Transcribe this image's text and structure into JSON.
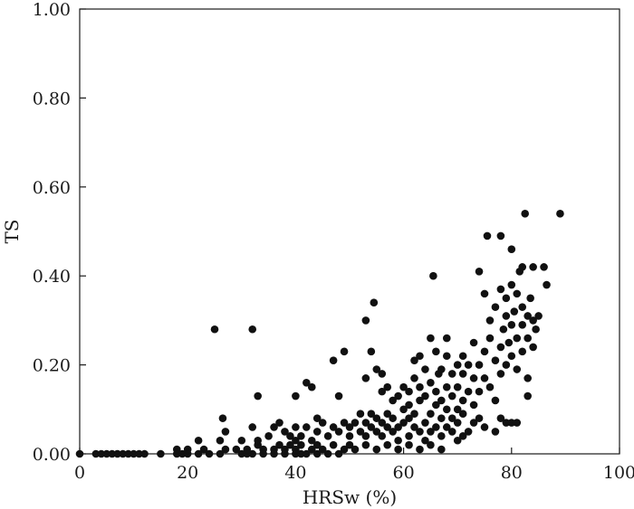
{
  "chart_data": {
    "type": "scatter",
    "xlabel": "HRSw (%)",
    "ylabel": "TS",
    "xlim": [
      0,
      100
    ],
    "ylim": [
      0,
      1.0
    ],
    "x_ticks": [
      0,
      20,
      40,
      60,
      80,
      100
    ],
    "y_ticks": [
      0.0,
      0.2,
      0.4,
      0.6,
      0.8,
      1.0
    ],
    "x_tick_labels": [
      "0",
      "20",
      "40",
      "60",
      "80",
      "100"
    ],
    "y_tick_labels": [
      "0.00",
      "0.20",
      "0.40",
      "0.60",
      "0.80",
      "1.00"
    ],
    "grid": false,
    "legend": "none",
    "marker_color": "#111111",
    "points": [
      [
        0,
        0
      ],
      [
        3,
        0
      ],
      [
        4,
        0
      ],
      [
        5,
        0
      ],
      [
        6,
        0
      ],
      [
        7,
        0
      ],
      [
        8,
        0
      ],
      [
        9,
        0
      ],
      [
        10,
        0
      ],
      [
        11,
        0
      ],
      [
        12,
        0
      ],
      [
        15,
        0
      ],
      [
        18,
        0
      ],
      [
        19,
        0
      ],
      [
        20,
        0
      ],
      [
        22,
        0
      ],
      [
        24,
        0
      ],
      [
        26,
        0
      ],
      [
        30,
        0
      ],
      [
        31,
        0
      ],
      [
        32,
        0
      ],
      [
        34,
        0
      ],
      [
        36,
        0
      ],
      [
        38,
        0
      ],
      [
        40,
        0
      ],
      [
        41,
        0
      ],
      [
        42,
        0
      ],
      [
        44,
        0
      ],
      [
        46,
        0
      ],
      [
        48,
        0
      ],
      [
        18,
        0.01
      ],
      [
        20,
        0.01
      ],
      [
        23,
        0.01
      ],
      [
        27,
        0.01
      ],
      [
        29,
        0.01
      ],
      [
        31,
        0.01
      ],
      [
        33,
        0.02
      ],
      [
        34,
        0.01
      ],
      [
        36,
        0.01
      ],
      [
        37,
        0.02
      ],
      [
        38,
        0.01
      ],
      [
        39,
        0.02
      ],
      [
        40,
        0.01
      ],
      [
        41,
        0.02
      ],
      [
        43,
        0.01
      ],
      [
        44,
        0.02
      ],
      [
        45,
        0.01
      ],
      [
        47,
        0.02
      ],
      [
        49,
        0.01
      ],
      [
        50,
        0.02
      ],
      [
        51,
        0.01
      ],
      [
        53,
        0.02
      ],
      [
        55,
        0.01
      ],
      [
        57,
        0.02
      ],
      [
        59,
        0.01
      ],
      [
        61,
        0.02
      ],
      [
        63,
        0.01
      ],
      [
        65,
        0.02
      ],
      [
        67,
        0.01
      ],
      [
        22,
        0.03
      ],
      [
        26,
        0.03
      ],
      [
        27,
        0.05
      ],
      [
        26.5,
        0.08
      ],
      [
        30,
        0.03
      ],
      [
        32,
        0.06
      ],
      [
        33,
        0.03
      ],
      [
        35,
        0.04
      ],
      [
        36,
        0.06
      ],
      [
        37,
        0.07
      ],
      [
        38,
        0.05
      ],
      [
        39,
        0.04
      ],
      [
        40,
        0.03
      ],
      [
        40,
        0.06
      ],
      [
        41,
        0.04
      ],
      [
        42,
        0.06
      ],
      [
        43,
        0.03
      ],
      [
        44,
        0.05
      ],
      [
        44,
        0.08
      ],
      [
        45,
        0.07
      ],
      [
        46,
        0.04
      ],
      [
        47,
        0.06
      ],
      [
        48,
        0.05
      ],
      [
        49,
        0.07
      ],
      [
        50,
        0.04
      ],
      [
        50,
        0.06
      ],
      [
        51,
        0.07
      ],
      [
        52,
        0.05
      ],
      [
        52,
        0.09
      ],
      [
        53,
        0.07
      ],
      [
        53,
        0.04
      ],
      [
        54,
        0.06
      ],
      [
        54,
        0.09
      ],
      [
        55,
        0.05
      ],
      [
        55,
        0.08
      ],
      [
        56,
        0.07
      ],
      [
        56,
        0.04
      ],
      [
        57,
        0.06
      ],
      [
        57,
        0.09
      ],
      [
        58,
        0.05
      ],
      [
        58,
        0.08
      ],
      [
        59,
        0.06
      ],
      [
        59,
        0.03
      ],
      [
        60,
        0.07
      ],
      [
        60,
        0.1
      ],
      [
        61,
        0.04
      ],
      [
        61,
        0.08
      ],
      [
        62,
        0.06
      ],
      [
        62,
        0.09
      ],
      [
        63,
        0.05
      ],
      [
        63,
        0.12
      ],
      [
        64,
        0.07
      ],
      [
        64,
        0.03
      ],
      [
        65,
        0.05
      ],
      [
        65,
        0.09
      ],
      [
        66,
        0.06
      ],
      [
        66,
        0.11
      ],
      [
        67,
        0.04
      ],
      [
        67,
        0.08
      ],
      [
        68,
        0.06
      ],
      [
        68,
        0.1
      ],
      [
        69,
        0.05
      ],
      [
        69,
        0.08
      ],
      [
        70,
        0.03
      ],
      [
        70,
        0.07
      ],
      [
        71,
        0.04
      ],
      [
        71,
        0.09
      ],
      [
        72,
        0.05
      ],
      [
        73,
        0.07
      ],
      [
        74,
        0.08
      ],
      [
        75,
        0.06
      ],
      [
        77,
        0.05
      ],
      [
        78,
        0.08
      ],
      [
        79,
        0.07
      ],
      [
        80,
        0.07
      ],
      [
        81,
        0.07
      ],
      [
        25,
        0.28
      ],
      [
        32,
        0.28
      ],
      [
        33,
        0.13
      ],
      [
        40,
        0.13
      ],
      [
        42,
        0.16
      ],
      [
        43,
        0.15
      ],
      [
        47,
        0.21
      ],
      [
        48,
        0.13
      ],
      [
        49,
        0.23
      ],
      [
        53,
        0.17
      ],
      [
        53,
        0.3
      ],
      [
        54,
        0.23
      ],
      [
        54.5,
        0.34
      ],
      [
        55,
        0.19
      ],
      [
        56,
        0.18
      ],
      [
        56,
        0.14
      ],
      [
        57,
        0.15
      ],
      [
        58,
        0.12
      ],
      [
        59,
        0.13
      ],
      [
        60,
        0.15
      ],
      [
        61,
        0.11
      ],
      [
        61,
        0.14
      ],
      [
        62,
        0.21
      ],
      [
        62,
        0.17
      ],
      [
        63,
        0.22
      ],
      [
        63,
        0.15
      ],
      [
        64,
        0.19
      ],
      [
        64,
        0.13
      ],
      [
        65,
        0.26
      ],
      [
        65,
        0.16
      ],
      [
        65.5,
        0.4
      ],
      [
        66,
        0.23
      ],
      [
        66,
        0.14
      ],
      [
        66.5,
        0.18
      ],
      [
        67,
        0.12
      ],
      [
        67,
        0.19
      ],
      [
        68,
        0.26
      ],
      [
        68,
        0.15
      ],
      [
        68,
        0.22
      ],
      [
        69,
        0.13
      ],
      [
        69,
        0.18
      ],
      [
        70,
        0.1
      ],
      [
        70,
        0.2
      ],
      [
        70,
        0.15
      ],
      [
        71,
        0.12
      ],
      [
        71,
        0.18
      ],
      [
        71,
        0.22
      ],
      [
        72,
        0.14
      ],
      [
        72,
        0.2
      ],
      [
        73,
        0.17
      ],
      [
        73,
        0.11
      ],
      [
        73,
        0.25
      ],
      [
        74,
        0.2
      ],
      [
        74,
        0.14
      ],
      [
        74,
        0.41
      ],
      [
        75,
        0.17
      ],
      [
        75,
        0.23
      ],
      [
        75,
        0.36
      ],
      [
        75.5,
        0.49
      ],
      [
        76,
        0.26
      ],
      [
        76,
        0.15
      ],
      [
        76,
        0.3
      ],
      [
        77,
        0.21
      ],
      [
        77,
        0.12
      ],
      [
        77,
        0.33
      ],
      [
        78,
        0.24
      ],
      [
        78,
        0.18
      ],
      [
        78,
        0.37
      ],
      [
        78,
        0.49
      ],
      [
        78.5,
        0.28
      ],
      [
        79,
        0.2
      ],
      [
        79,
        0.31
      ],
      [
        79,
        0.35
      ],
      [
        79.5,
        0.25
      ],
      [
        80,
        0.22
      ],
      [
        80,
        0.29
      ],
      [
        80,
        0.38
      ],
      [
        80,
        0.46
      ],
      [
        80.5,
        0.32
      ],
      [
        81,
        0.26
      ],
      [
        81,
        0.19
      ],
      [
        81,
        0.36
      ],
      [
        81.5,
        0.41
      ],
      [
        82,
        0.23
      ],
      [
        82,
        0.29
      ],
      [
        82,
        0.33
      ],
      [
        82,
        0.42
      ],
      [
        82.5,
        0.54
      ],
      [
        83,
        0.26
      ],
      [
        83,
        0.31
      ],
      [
        83,
        0.17
      ],
      [
        83,
        0.13
      ],
      [
        83.5,
        0.35
      ],
      [
        84,
        0.3
      ],
      [
        84,
        0.42
      ],
      [
        84,
        0.24
      ],
      [
        84.5,
        0.28
      ],
      [
        85,
        0.31
      ],
      [
        86,
        0.42
      ],
      [
        86.5,
        0.38
      ],
      [
        89,
        0.54
      ]
    ]
  }
}
